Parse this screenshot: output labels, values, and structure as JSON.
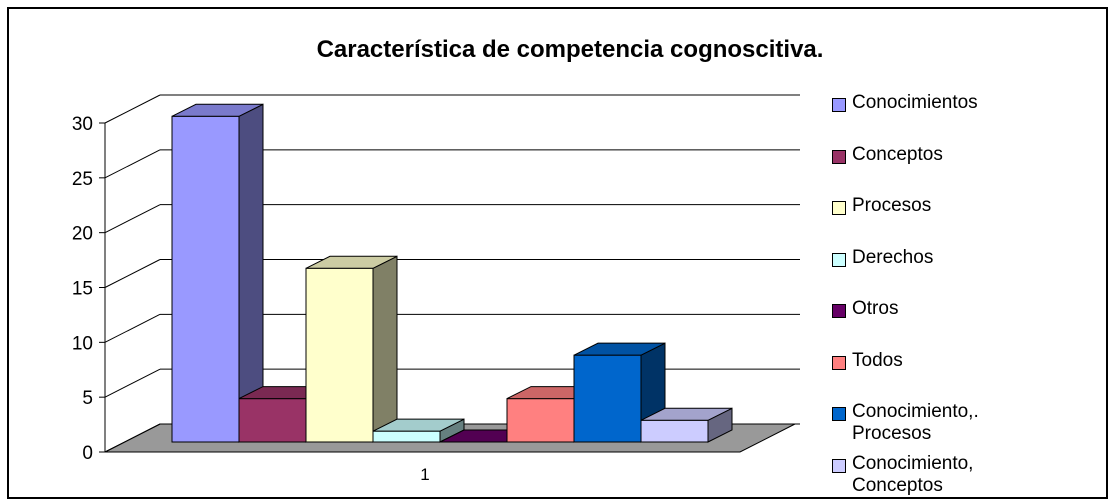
{
  "chart_data": {
    "type": "bar3d",
    "title": "Característica de competencia cognoscitiva.",
    "categories": [
      "1"
    ],
    "series": [
      {
        "name": "Conocimientos",
        "color": "#9999ff",
        "values": [
          30
        ]
      },
      {
        "name": "Conceptos",
        "color": "#993366",
        "values": [
          4
        ]
      },
      {
        "name": "Procesos",
        "color": "#ffffcc",
        "values": [
          16
        ]
      },
      {
        "name": "Derechos",
        "color": "#ccffff",
        "values": [
          1
        ]
      },
      {
        "name": "Otros",
        "color": "#660066",
        "values": [
          0
        ]
      },
      {
        "name": "Todos",
        "color": "#ff8080",
        "values": [
          4
        ]
      },
      {
        "name": "Conocimiento,. Procesos",
        "color": "#0066cc",
        "values": [
          8
        ]
      },
      {
        "name": "Conocimiento, Conceptos",
        "color": "#ccccff",
        "values": [
          2
        ]
      }
    ],
    "ylim": [
      0,
      30
    ],
    "yticks": [
      0,
      5,
      10,
      15,
      20,
      25,
      30
    ],
    "grid": true,
    "legend": "right"
  }
}
